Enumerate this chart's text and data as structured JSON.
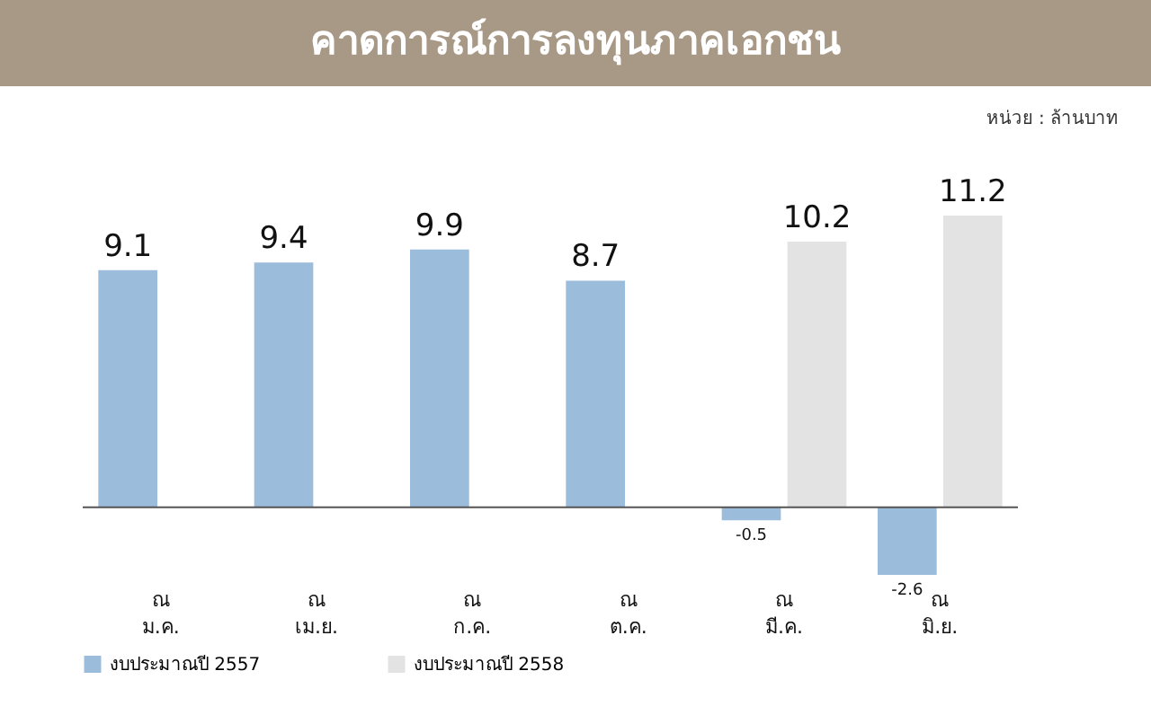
{
  "chart_data": {
    "type": "bar",
    "title": "คาดการณ์การลงทุนภาคเอกชน",
    "annotations": [
      "หน่วย : ล้านบาท"
    ],
    "categories": [
      "ณ ม.ค.",
      "ณ เม.ย.",
      "ณ ก.ค.",
      "ณ ต.ค.",
      "ณ มี.ค.",
      "ณ มิ.ย."
    ],
    "series": [
      {
        "name": "งบประมาณปี 2557",
        "color": "#9bbddb",
        "values": [
          9.1,
          9.4,
          9.9,
          8.7,
          -0.5,
          -2.6
        ]
      },
      {
        "name": "งบประมาณปี 2558",
        "color": "#e3e3e3",
        "values": [
          null,
          null,
          null,
          null,
          10.2,
          11.2
        ]
      }
    ],
    "data_labels": true,
    "legend": "bottom",
    "tick_labels": "x"
  }
}
